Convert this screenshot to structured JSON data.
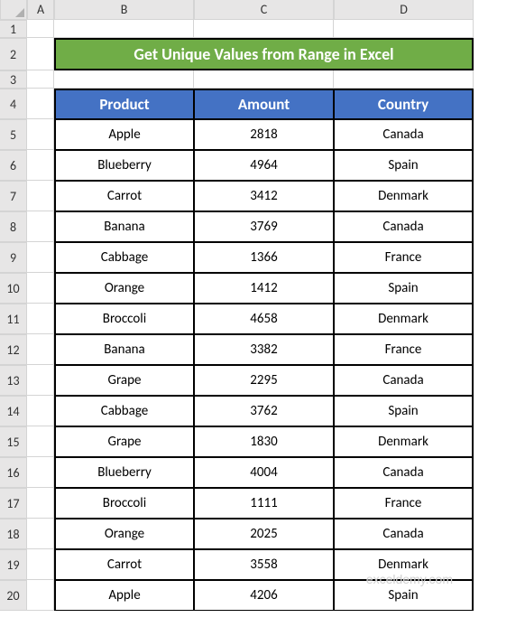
{
  "columns": [
    "A",
    "B",
    "C",
    "D"
  ],
  "row_numbers": [
    1,
    2,
    3,
    4,
    5,
    6,
    7,
    8,
    9,
    10,
    11,
    12,
    13,
    14,
    15,
    16,
    17,
    18,
    19,
    20
  ],
  "title": {
    "text": "Get Unique Values from Range in Excel",
    "background_color": "#70ad47",
    "text_color": "#ffffff",
    "fontsize": 18
  },
  "table": {
    "header_background": "#4472c4",
    "header_text_color": "#ffffff",
    "header_fontsize": 17,
    "data_fontsize": 15,
    "border_color": "#000000",
    "headers": [
      "Product",
      "Amount",
      "Country"
    ],
    "rows": [
      [
        "Apple",
        "2818",
        "Canada"
      ],
      [
        "Blueberry",
        "4964",
        "Spain"
      ],
      [
        "Carrot",
        "3412",
        "Denmark"
      ],
      [
        "Banana",
        "3769",
        "Canada"
      ],
      [
        "Cabbage",
        "1366",
        "France"
      ],
      [
        "Orange",
        "1412",
        "Spain"
      ],
      [
        "Broccoli",
        "4658",
        "Denmark"
      ],
      [
        "Banana",
        "3382",
        "France"
      ],
      [
        "Grape",
        "2295",
        "Canada"
      ],
      [
        "Cabbage",
        "3762",
        "Spain"
      ],
      [
        "Grape",
        "1830",
        "Denmark"
      ],
      [
        "Blueberry",
        "4004",
        "Canada"
      ],
      [
        "Broccoli",
        "1111",
        "France"
      ],
      [
        "Orange",
        "2025",
        "Canada"
      ],
      [
        "Carrot",
        "3558",
        "Denmark"
      ],
      [
        "Apple",
        "4206",
        "Spain"
      ]
    ]
  },
  "watermark": "exceldemy.com",
  "grid": {
    "header_background": "#e7e6e6",
    "grid_line_color": "#d4d4d4",
    "row_label_col_width": 30,
    "col_a_width": 30,
    "data_col_width": 155
  }
}
